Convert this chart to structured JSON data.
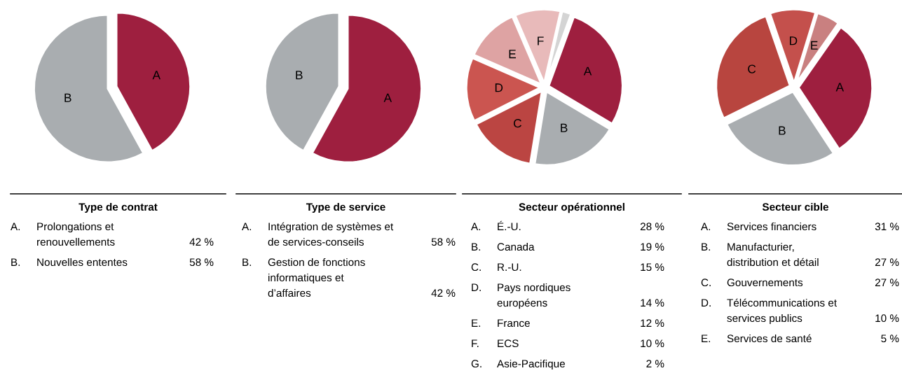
{
  "chart_data": [
    {
      "type": "pie",
      "title": "Type de contrat",
      "categories": [
        "A",
        "B"
      ],
      "values": [
        42,
        58
      ],
      "colors": [
        "#9e1f3f",
        "#a9adb0"
      ],
      "annotations": [
        "A.",
        "Prolongations et\nrenouvellements",
        "42 %",
        "B.",
        "Nouvelles ententes",
        "58 %"
      ]
    },
    {
      "type": "pie",
      "title": "Type de service",
      "categories": [
        "A",
        "B"
      ],
      "values": [
        58,
        42
      ],
      "colors": [
        "#9e1f3f",
        "#a9adb0"
      ],
      "annotations": [
        "A.",
        "Intégration de systèmes et\nde services-conseils",
        "58 %",
        "B.",
        "Gestion de fonctions\ninformatiques et\nd’affaires",
        "42 %"
      ]
    },
    {
      "type": "pie",
      "title": "Secteur opérationnel",
      "categories": [
        "A",
        "B",
        "C",
        "D",
        "E",
        "F",
        null
      ],
      "values": [
        28,
        19,
        15,
        14,
        12,
        10,
        2
      ],
      "colors": [
        "#9e1f3f",
        "#a9adb0",
        "#bb4542",
        "#cb5550",
        "#dea3a3",
        "#e8baba",
        "#d4d4d4"
      ],
      "annotations": [
        "A.",
        "É.-U.",
        "28 %",
        "B.",
        "Canada",
        "19 %",
        "C.",
        "R.-U.",
        "15 %",
        "D.",
        "Pays nordiques\neuropéens",
        "14 %",
        "E.",
        "France",
        "12 %",
        "F.",
        "ECS",
        "10 %",
        "G.",
        "Asie-Pacifique",
        "2 %"
      ]
    },
    {
      "type": "pie",
      "title": "Secteur cible",
      "categories": [
        "A",
        "B",
        "C",
        "D",
        "E"
      ],
      "values": [
        31,
        27,
        27,
        10,
        5
      ],
      "colors": [
        "#9e1f3f",
        "#a9adb0",
        "#b8453f",
        "#c4504c",
        "#c98080"
      ],
      "annotations": [
        "A.",
        "Services financiers",
        "31 %",
        "B.",
        "Manufacturier,\ndistribution et détail",
        "27 %",
        "C.",
        "Gouvernements",
        "27 %",
        "D.",
        "Télécommunications et\nservices publics",
        "10 %",
        "E.",
        "Services de santé",
        "5 %"
      ]
    }
  ]
}
